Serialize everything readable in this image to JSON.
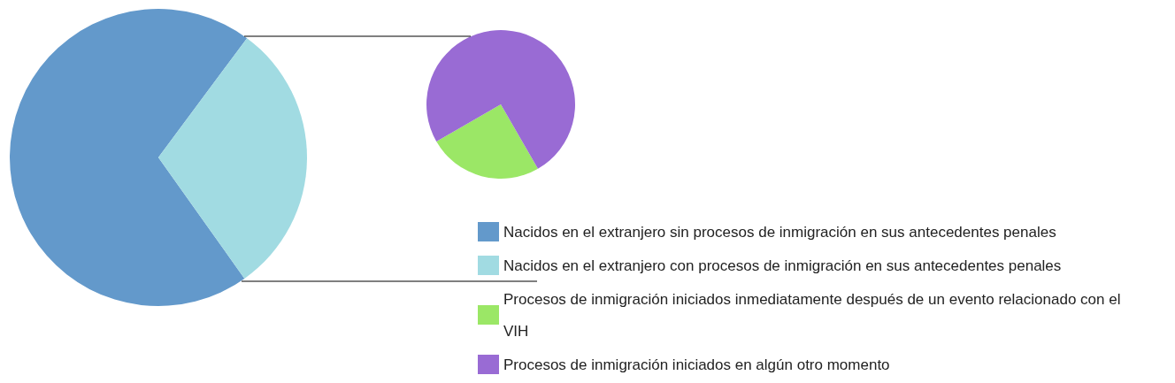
{
  "chart_data": [
    {
      "type": "pie",
      "categories": [
        "Nacidos en el extranjero sin procesos de inmigración en sus antecedentes penales",
        "Nacidos en el extranjero con procesos de inmigración en sus antecedentes penales"
      ],
      "values": [
        70,
        30
      ],
      "colors": [
        "#6399cb",
        "#a1dbe2"
      ],
      "legend": "bottom right"
    },
    {
      "type": "pie",
      "categories": [
        "Procesos de inmigración iniciados inmediatamente después de un evento relacionado con el VIH",
        "Procesos de inmigración iniciados en algún otro momento"
      ],
      "values": [
        25,
        75
      ],
      "colors": [
        "#9be766",
        "#996bd4"
      ],
      "legend": "bottom right"
    }
  ]
}
